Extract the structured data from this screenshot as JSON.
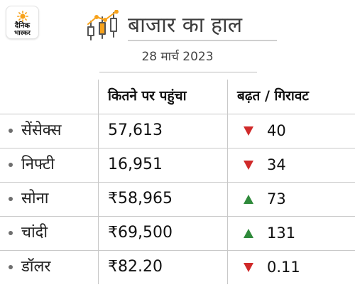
{
  "logo": {
    "line1": "दैनिक",
    "line2": "भास्कर",
    "accent_color": "#f7a21b"
  },
  "header": {
    "icon": "candlestick-chart-icon",
    "title": "बाजार का हाल"
  },
  "date": "28 मार्च 2023",
  "table": {
    "columns": [
      "",
      "कितने पर पहुंचा",
      "बढ़त / गिरावट"
    ],
    "rows": [
      {
        "name": "सेंसेक्स",
        "value": " 57,613",
        "direction": "down",
        "change": "40"
      },
      {
        "name": "निफ्टी",
        "value": "16,951",
        "direction": "down",
        "change": "34"
      },
      {
        "name": "सोना",
        "value": "₹58,965",
        "direction": "up",
        "change": "73"
      },
      {
        "name": "चांदी",
        "value": "₹69,500",
        "direction": "up",
        "change": "131"
      },
      {
        "name": "डॉलर",
        "value": "₹82.20",
        "direction": "down",
        "change": "0.11"
      }
    ]
  },
  "colors": {
    "down": "#d02a2a",
    "up": "#2f8a3b"
  }
}
